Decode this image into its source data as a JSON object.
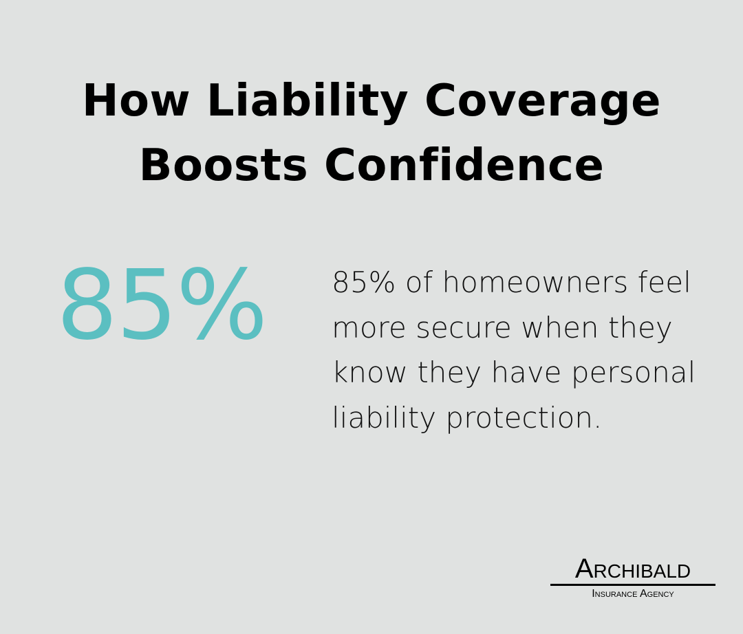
{
  "title": "How Liability Coverage Boosts Confidence",
  "stat": {
    "value": "85%",
    "color": "#5bbfc1"
  },
  "description": "85% of homeowners feel more secure when they know they have personal liability protection.",
  "logo": {
    "name": "Archibald",
    "tagline": "Insurance Agency"
  }
}
